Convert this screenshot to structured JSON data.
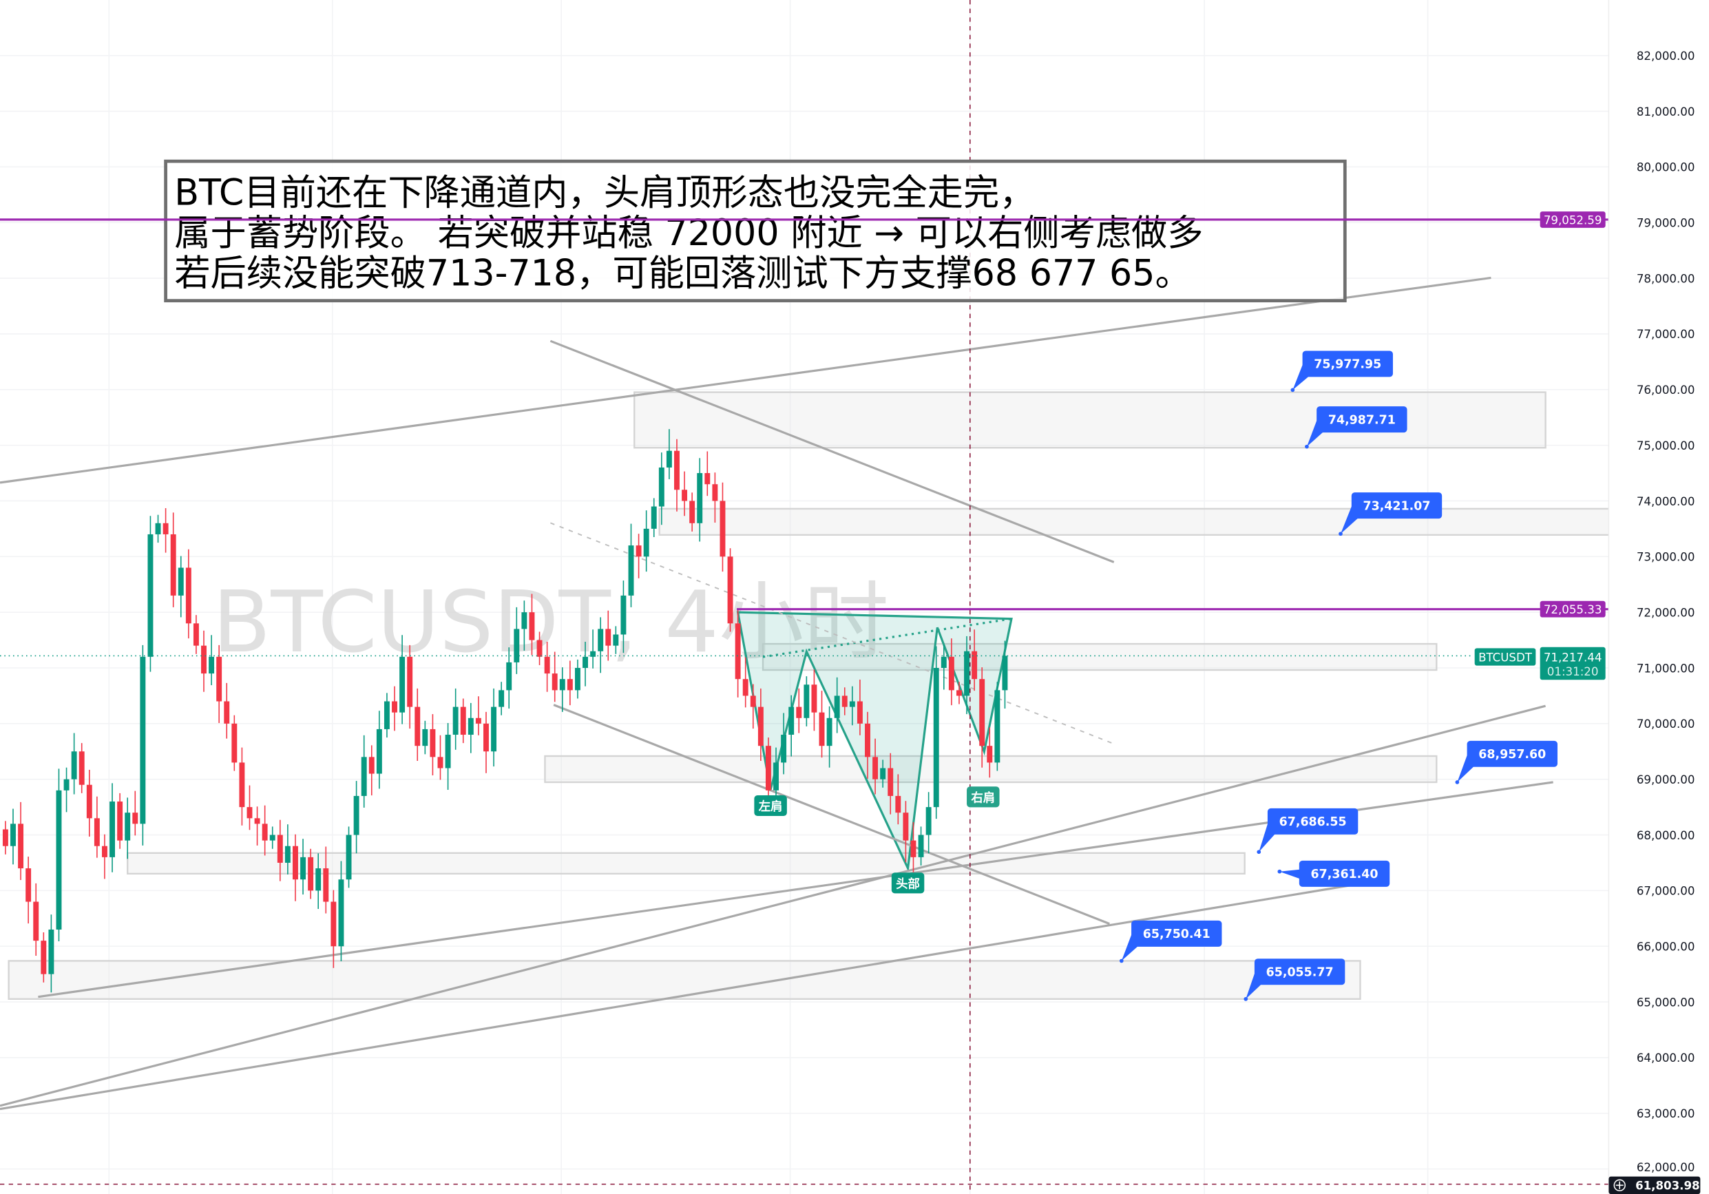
{
  "chart_data": {
    "type": "candlestick",
    "symbol": "BTCUSDT",
    "watermark": "BTCUSDT, 4小时",
    "ylim": [
      61800,
      83000
    ],
    "y_ticks": [
      "82,000.00",
      "81,000.00",
      "80,000.00",
      "79,000.00",
      "78,000.00",
      "77,000.00",
      "76,000.00",
      "75,000.00",
      "74,000.00",
      "73,000.00",
      "72,000.00",
      "71,000.00",
      "70,000.00",
      "69,000.00",
      "68,000.00",
      "67,000.00",
      "66,000.00",
      "65,000.00",
      "64,000.00",
      "63,000.00",
      "62,000.00"
    ],
    "y_tick_values": [
      82000,
      81000,
      80000,
      79000,
      78000,
      77000,
      76000,
      75000,
      74000,
      73000,
      72000,
      71000,
      70000,
      69000,
      68000,
      67000,
      66000,
      65000,
      64000,
      63000,
      62000
    ],
    "closes": [
      67800,
      68200,
      67400,
      66800,
      66100,
      65500,
      66300,
      68800,
      69000,
      69500,
      68900,
      68300,
      67800,
      67600,
      68600,
      67900,
      68400,
      68200,
      71200,
      73400,
      73600,
      73400,
      72300,
      72800,
      71800,
      71400,
      70900,
      71200,
      70400,
      70000,
      69300,
      68500,
      68300,
      68200,
      67900,
      68000,
      67500,
      67800,
      67200,
      67600,
      67000,
      67400,
      66800,
      66000,
      67200,
      68000,
      68700,
      69400,
      69100,
      69900,
      70400,
      70200,
      71200,
      70300,
      69600,
      69900,
      69400,
      69200,
      69800,
      70300,
      69800,
      70100,
      70000,
      69500,
      70300,
      70600,
      71100,
      71700,
      72000,
      71500,
      71200,
      70900,
      70600,
      70800,
      70600,
      71000,
      71200,
      71300,
      71700,
      71400,
      71600,
      72300,
      73200,
      73000,
      73500,
      73900,
      74600,
      74900,
      74200,
      74000,
      73600,
      74500,
      74300,
      74000,
      73000,
      71800,
      70800,
      70500,
      70300,
      69600,
      68800,
      69300,
      69800,
      70300,
      70100,
      70700,
      70200,
      69600,
      70100,
      70500,
      70300,
      70400,
      70000,
      69400,
      69000,
      69200,
      68700,
      68400,
      67900,
      67600,
      68000,
      68500,
      71000,
      71200,
      70600,
      70500,
      71300,
      70800,
      69600,
      69300,
      70600,
      71217.44
    ],
    "up_color": "#089981",
    "down_color": "#f23645",
    "horizontal_levels": [
      {
        "price": 79052.59,
        "label": "79,052.59",
        "color": "#9c27b0"
      },
      {
        "price": 72055.33,
        "label": "72,055.33",
        "color": "#9c27b0"
      }
    ],
    "current_price": {
      "symbol": "BTCUSDT",
      "label": "71,217.44",
      "countdown": "01:31:20",
      "color": "#089981"
    },
    "crosshair_price": "61,803.98",
    "price_labels": [
      "75,977.95",
      "74,987.71",
      "73,421.07",
      "68,957.60",
      "67,686.55",
      "67,361.40",
      "65,750.41",
      "65,055.77"
    ],
    "pattern_labels": {
      "left_shoulder": "左肩",
      "head": "头部",
      "right_shoulder": "右肩"
    },
    "note_lines": [
      "BTC目前还在下降通道内，头肩顶形态也没完全走完，",
      "属于蓄势阶段。 若突破并站稳 72000 附近 → 可以右侧考虑做多",
      "若后续没能突破713-718，可能回落测试下方支撑68 677  65。"
    ],
    "label_color": "#2962ff"
  }
}
